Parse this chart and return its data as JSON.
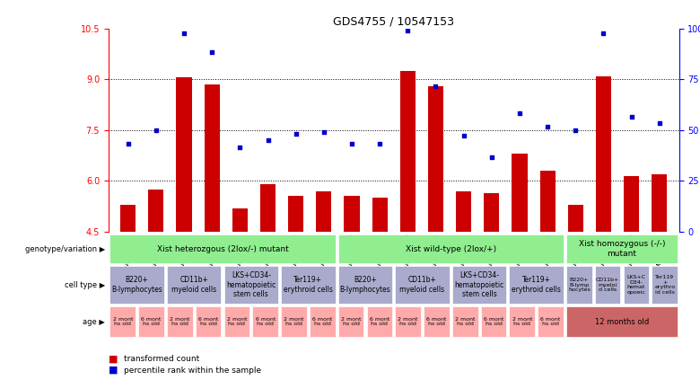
{
  "title": "GDS4755 / 10547153",
  "samples": [
    "GSM1075053",
    "GSM1075041",
    "GSM1075054",
    "GSM1075042",
    "GSM1075055",
    "GSM1075043",
    "GSM1075056",
    "GSM1075044",
    "GSM1075049",
    "GSM1075045",
    "GSM1075050",
    "GSM1075046",
    "GSM1075051",
    "GSM1075047",
    "GSM1075052",
    "GSM1075048",
    "GSM1075057",
    "GSM1075058",
    "GSM1075059",
    "GSM1075060"
  ],
  "bar_values": [
    5.3,
    5.75,
    9.05,
    8.85,
    5.2,
    5.9,
    5.55,
    5.7,
    5.55,
    5.5,
    9.25,
    8.8,
    5.7,
    5.65,
    6.8,
    6.3,
    5.3,
    9.1,
    6.15,
    6.2
  ],
  "scatter_values": [
    7.1,
    7.5,
    10.35,
    9.8,
    7.0,
    7.2,
    7.4,
    7.45,
    7.1,
    7.1,
    10.45,
    8.8,
    7.35,
    6.7,
    8.0,
    7.6,
    7.5,
    10.35,
    7.9,
    7.7
  ],
  "ymin": 4.5,
  "ymax": 10.5,
  "yticks": [
    4.5,
    6.0,
    7.5,
    9.0,
    10.5
  ],
  "right_yticks_labels": [
    "0",
    "25",
    "50",
    "75",
    "100%"
  ],
  "bar_color": "#CC0000",
  "scatter_color": "#0000CC",
  "bar_base": 4.5,
  "dotted_lines": [
    6.0,
    7.5,
    9.0
  ],
  "genotype_color": "#90EE90",
  "cell_color": "#AAAACC",
  "age_color_light": "#FFAAAA",
  "age_color_dark": "#CC6666",
  "legend_bar_color": "#CC0000",
  "legend_scatter_color": "#0000CC",
  "legend_bar_label": "transformed count",
  "legend_scatter_label": "percentile rank within the sample",
  "genotype_groups": [
    {
      "label": "Xist heterozgous (2lox/-) mutant",
      "start": 0,
      "end": 8
    },
    {
      "label": "Xist wild-type (2lox/+)",
      "start": 8,
      "end": 16
    },
    {
      "label": "Xist homozygous (-/-)\nmutant",
      "start": 16,
      "end": 20
    }
  ],
  "cell_type_groups": [
    {
      "label": "B220+\nB-lymphocytes",
      "start": 0,
      "end": 2
    },
    {
      "label": "CD11b+\nmyeloid cells",
      "start": 2,
      "end": 4
    },
    {
      "label": "LKS+CD34-\nhematopoietic\nstem cells",
      "start": 4,
      "end": 6
    },
    {
      "label": "Ter119+\nerythroid cells",
      "start": 6,
      "end": 8
    },
    {
      "label": "B220+\nB-lymphocytes",
      "start": 8,
      "end": 10
    },
    {
      "label": "CD11b+\nmyeloid cells",
      "start": 10,
      "end": 12
    },
    {
      "label": "LKS+CD34-\nhematopoietic\nstem cells",
      "start": 12,
      "end": 14
    },
    {
      "label": "Ter119+\nerythroid cells",
      "start": 14,
      "end": 16
    },
    {
      "label": "B220+\nB-lymp\nhocytes",
      "start": 16,
      "end": 17
    },
    {
      "label": "CD11b+\nmyeloi\nd cells",
      "start": 17,
      "end": 18
    },
    {
      "label": "LKS+C\nD34-\nhemat\nopoeic",
      "start": 18,
      "end": 19
    },
    {
      "label": "Ter119\n+\nerythro\nid cells",
      "start": 19,
      "end": 20
    }
  ],
  "age_groups": [
    {
      "label": "2 mont\nhs old",
      "start": 0,
      "end": 1,
      "dark": false
    },
    {
      "label": "6 mont\nhs old",
      "start": 1,
      "end": 2,
      "dark": false
    },
    {
      "label": "2 mont\nhs old",
      "start": 2,
      "end": 3,
      "dark": false
    },
    {
      "label": "6 mont\nhs old",
      "start": 3,
      "end": 4,
      "dark": false
    },
    {
      "label": "2 mont\nhs old",
      "start": 4,
      "end": 5,
      "dark": false
    },
    {
      "label": "6 mont\nhs old",
      "start": 5,
      "end": 6,
      "dark": false
    },
    {
      "label": "2 mont\nhs old",
      "start": 6,
      "end": 7,
      "dark": false
    },
    {
      "label": "6 mont\nhs old",
      "start": 7,
      "end": 8,
      "dark": false
    },
    {
      "label": "2 mont\nhs old",
      "start": 8,
      "end": 9,
      "dark": false
    },
    {
      "label": "6 mont\nhs old",
      "start": 9,
      "end": 10,
      "dark": false
    },
    {
      "label": "2 mont\nhs old",
      "start": 10,
      "end": 11,
      "dark": false
    },
    {
      "label": "6 mont\nhs old",
      "start": 11,
      "end": 12,
      "dark": false
    },
    {
      "label": "2 mont\nhs old",
      "start": 12,
      "end": 13,
      "dark": false
    },
    {
      "label": "6 mont\nhs old",
      "start": 13,
      "end": 14,
      "dark": false
    },
    {
      "label": "2 mont\nhs old",
      "start": 14,
      "end": 15,
      "dark": false
    },
    {
      "label": "6 mont\nhs old",
      "start": 15,
      "end": 16,
      "dark": false
    },
    {
      "label": "12 months old",
      "start": 16,
      "end": 20,
      "dark": true
    }
  ]
}
